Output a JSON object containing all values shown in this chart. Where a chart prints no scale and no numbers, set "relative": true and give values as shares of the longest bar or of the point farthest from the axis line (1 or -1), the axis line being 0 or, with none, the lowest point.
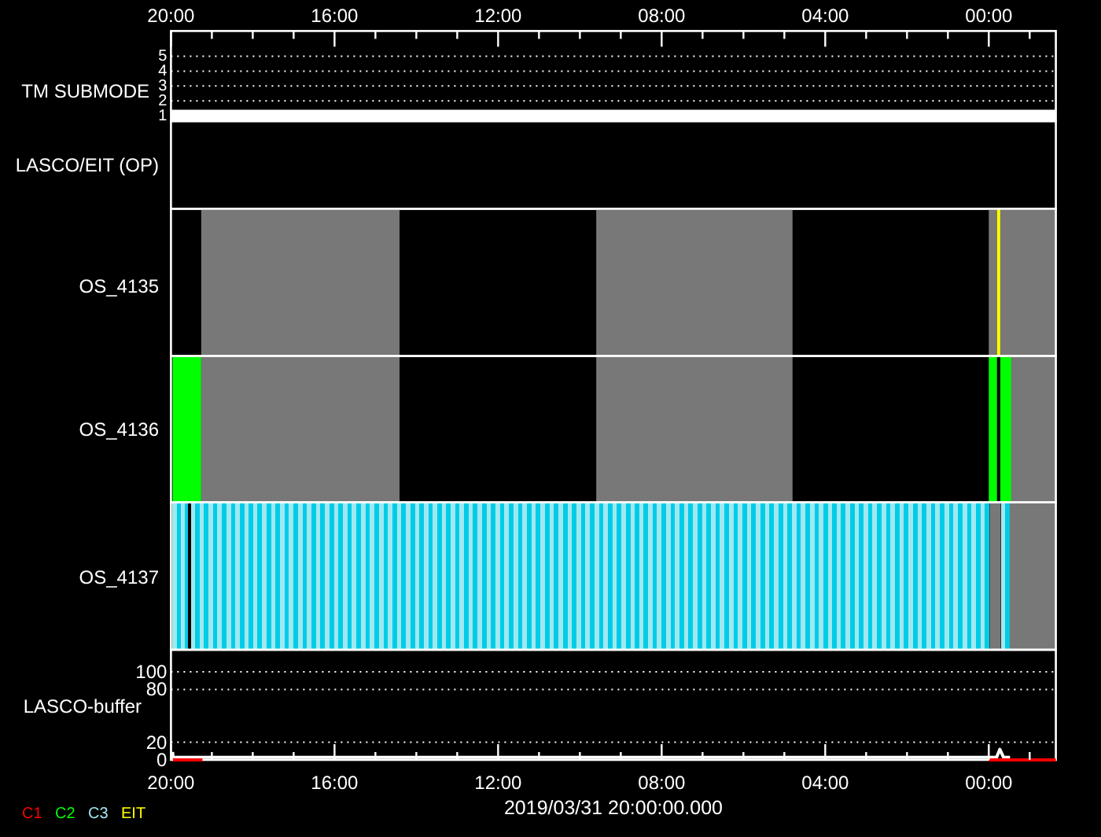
{
  "chart_data": [
    {
      "type": "line",
      "ylabel": "TM SUBMODE",
      "xlim": [
        20,
        -1.64
      ],
      "xticks": [
        {
          "value": 20,
          "label": "20:00"
        },
        {
          "value": 19,
          "label": null
        },
        {
          "value": 18,
          "label": null
        },
        {
          "value": 17,
          "label": null
        },
        {
          "value": 16,
          "label": "16:00"
        },
        {
          "value": 15,
          "label": null
        },
        {
          "value": 14,
          "label": null
        },
        {
          "value": 13,
          "label": null
        },
        {
          "value": 12,
          "label": "12:00"
        },
        {
          "value": 11,
          "label": null
        },
        {
          "value": 10,
          "label": null
        },
        {
          "value": 9,
          "label": null
        },
        {
          "value": 8,
          "label": "08:00"
        },
        {
          "value": 7,
          "label": null
        },
        {
          "value": 6,
          "label": null
        },
        {
          "value": 5,
          "label": null
        },
        {
          "value": 4,
          "label": "04:00"
        },
        {
          "value": 3,
          "label": null
        },
        {
          "value": 2,
          "label": null
        },
        {
          "value": 1,
          "label": null
        },
        {
          "value": 0,
          "label": "00:00"
        },
        {
          "value": -1,
          "label": null
        }
      ],
      "ylim": [
        0.63,
        6.7
      ],
      "yticks": [
        1,
        2,
        3,
        4,
        5
      ],
      "grid": "y",
      "series": [
        {
          "color": "#ffffff",
          "x": [
            20,
            -1.64
          ],
          "values": [
            1,
            1
          ]
        }
      ]
    },
    {
      "type": "other",
      "ylabel": "LASCO/EIT (OP)"
    },
    {
      "type": "area",
      "ylabel": "OS_4135",
      "relative": true,
      "xlim": [
        20,
        -1.64
      ],
      "legend": "bottom left",
      "series": [
        {
          "color": "#787878",
          "x": [
            19.26,
            19.26,
            14.41,
            14.41,
            9.6,
            9.6,
            4.8,
            4.8,
            0,
            0,
            -0.2,
            -0.2,
            -0.28,
            -0.28,
            -1.64
          ],
          "values": [
            0,
            1,
            1,
            0,
            0,
            1,
            1,
            0,
            0,
            1,
            1,
            0,
            0,
            1,
            1
          ]
        },
        {
          "name": "EIT",
          "color": "#ffff00",
          "x": [
            -0.2,
            -0.28
          ],
          "values": [
            1,
            1
          ]
        }
      ]
    },
    {
      "type": "area",
      "ylabel": "OS_4136",
      "relative": true,
      "xlim": [
        20,
        -1.64
      ],
      "legend": "bottom left",
      "series": [
        {
          "name": "C2",
          "color": "#00ff00",
          "x": [
            19.96,
            19.26,
            19.26,
            0,
            0,
            -0.2,
            -0.2,
            -0.28,
            -0.28,
            -0.55
          ],
          "values": [
            1,
            1,
            0,
            0,
            1,
            1,
            0,
            0,
            1,
            1
          ]
        },
        {
          "color": "#787878",
          "x": [
            19.26,
            14.41,
            14.41,
            9.6,
            9.6,
            4.8,
            4.8,
            -0.55,
            -0.55,
            -1.64
          ],
          "values": [
            1,
            1,
            0,
            0,
            1,
            1,
            0,
            0,
            1,
            1
          ]
        }
      ]
    },
    {
      "type": "area",
      "ylabel": "OS_4137",
      "relative": true,
      "xlim": [
        20,
        -1.64
      ],
      "legend": "bottom left",
      "series": [
        {
          "name": "C3",
          "type": "bar",
          "color": "#a0e8f0",
          "x": [
            19.91,
            19.81,
            19.71,
            19.61,
            19.54,
            19.47,
            19.36,
            19.25,
            19.14,
            19.03,
            18.92,
            18.81,
            18.7,
            18.59,
            18.48,
            18.37,
            18.26,
            18.15,
            18.05,
            17.94,
            17.83,
            17.72,
            17.61,
            17.5,
            17.39,
            17.28,
            17.17,
            17.06,
            16.95,
            16.84,
            16.73,
            16.62,
            16.51,
            16.4,
            16.29,
            16.18,
            16.07,
            15.96,
            15.85,
            15.74,
            15.63,
            15.52,
            15.41,
            15.3,
            15.19,
            15.08,
            14.97,
            14.86,
            14.75,
            14.64,
            14.53,
            14.42,
            14.31,
            14.2,
            14.09,
            13.98,
            13.87,
            13.76,
            13.65,
            13.54,
            13.43,
            13.32,
            13.22,
            13.11,
            13.0,
            12.89,
            12.78,
            12.67,
            12.56,
            12.45,
            12.34,
            12.23,
            12.12,
            12.01,
            11.9,
            11.79,
            11.68,
            11.57,
            11.46,
            11.35,
            11.24,
            11.13,
            11.02,
            10.91,
            10.8,
            10.69,
            10.58,
            10.47,
            10.36,
            10.25,
            10.14,
            10.03,
            9.92,
            9.81,
            9.7,
            9.59,
            9.48,
            9.37,
            9.26,
            9.15,
            9.04,
            8.93,
            8.82,
            8.71,
            8.6,
            8.5,
            8.39,
            8.28,
            8.17,
            8.06,
            7.95,
            7.84,
            7.73,
            7.62,
            7.51,
            7.4,
            7.29,
            7.18,
            7.07,
            6.96,
            6.85,
            6.74,
            6.63,
            6.52,
            6.41,
            6.3,
            6.19,
            6.08,
            5.97,
            5.86,
            5.75,
            5.64,
            5.53,
            5.42,
            5.31,
            5.2,
            5.09,
            4.98,
            4.87,
            4.76,
            4.65,
            4.54,
            4.43,
            4.32,
            4.21,
            4.1,
            3.99,
            3.88,
            3.77,
            3.67,
            3.56,
            3.45,
            3.34,
            3.23,
            3.12,
            3.01,
            2.9,
            2.79,
            2.68,
            2.57,
            2.46,
            2.35,
            2.24,
            2.13,
            2.02,
            1.91,
            1.8,
            1.69,
            1.58,
            1.47,
            1.36,
            1.25,
            1.14,
            1.03,
            0.92,
            0.81,
            0.7,
            0.59,
            0.48,
            0.37,
            0.26,
            0.15,
            0.04,
            -0.36,
            -0.45
          ],
          "values": [
            1,
            1,
            1,
            1,
            null,
            1,
            1,
            1,
            1,
            1,
            1,
            1,
            1,
            1,
            1,
            1,
            1,
            1,
            1,
            1,
            1,
            1,
            1,
            1,
            1,
            1,
            1,
            1,
            1,
            1,
            1,
            1,
            1,
            1,
            1,
            1,
            1,
            1,
            1,
            1,
            1,
            1,
            1,
            1,
            1,
            1,
            1,
            1,
            1,
            1,
            1,
            1,
            1,
            1,
            1,
            1,
            1,
            1,
            1,
            1,
            1,
            1,
            1,
            1,
            1,
            1,
            1,
            1,
            1,
            1,
            1,
            1,
            1,
            1,
            1,
            1,
            1,
            1,
            1,
            1,
            1,
            1,
            1,
            1,
            1,
            1,
            1,
            1,
            1,
            1,
            1,
            1,
            1,
            1,
            1,
            1,
            1,
            1,
            1,
            1,
            1,
            1,
            1,
            1,
            1,
            1,
            1,
            1,
            1,
            1,
            1,
            1,
            1,
            1,
            1,
            1,
            1,
            1,
            1,
            1,
            1,
            1,
            1,
            1,
            1,
            1,
            1,
            1,
            1,
            1,
            1,
            1,
            1,
            1,
            1,
            1,
            1,
            1,
            1,
            1,
            1,
            1,
            1,
            1,
            1,
            1,
            1,
            1,
            1,
            1,
            1,
            1,
            1,
            1,
            1,
            1,
            1,
            1,
            1,
            1,
            1,
            1,
            1,
            1,
            1,
            1,
            1,
            1,
            1,
            1,
            1,
            1,
            1,
            1,
            1,
            1,
            1,
            1,
            1,
            1,
            1,
            1,
            1,
            1,
            1
          ],
          "colors": [
            "#a0e8f0",
            "#00cce8",
            "#a0e8f0",
            "#00cce8",
            null,
            "#a0e8f0",
            "#00cce8",
            "#a0e8f0",
            "#00cce8",
            "#a0e8f0",
            "#00cce8",
            "#a0e8f0",
            "#00cce8",
            "#a0e8f0",
            "#00cce8",
            "#a0e8f0",
            "#00cce8",
            "#a0e8f0",
            "#00cce8",
            "#a0e8f0",
            "#00cce8",
            "#a0e8f0",
            "#00cce8",
            "#a0e8f0",
            "#00cce8",
            "#a0e8f0",
            "#00cce8",
            "#a0e8f0",
            "#00cce8",
            "#a0e8f0",
            "#00cce8",
            "#a0e8f0",
            "#00cce8",
            "#a0e8f0",
            "#00cce8",
            "#a0e8f0",
            "#00cce8",
            "#a0e8f0",
            "#00cce8",
            "#a0e8f0",
            "#00cce8",
            "#a0e8f0",
            "#00cce8",
            "#a0e8f0",
            "#00cce8",
            "#a0e8f0",
            "#00cce8",
            "#a0e8f0",
            "#00cce8",
            "#a0e8f0",
            "#00cce8",
            "#a0e8f0",
            "#00cce8",
            "#a0e8f0",
            "#00cce8",
            "#a0e8f0",
            "#00cce8",
            "#a0e8f0",
            "#00cce8",
            "#a0e8f0",
            "#00cce8",
            "#a0e8f0",
            "#00cce8",
            "#a0e8f0",
            "#00cce8",
            "#a0e8f0",
            "#00cce8",
            "#a0e8f0",
            "#00cce8",
            "#a0e8f0",
            "#00cce8",
            "#a0e8f0",
            "#00cce8",
            "#a0e8f0",
            "#00cce8",
            "#a0e8f0",
            "#00cce8",
            "#a0e8f0",
            "#00cce8",
            "#a0e8f0",
            "#00cce8",
            "#a0e8f0",
            "#00cce8",
            "#a0e8f0",
            "#00cce8",
            "#a0e8f0",
            "#00cce8",
            "#a0e8f0",
            "#00cce8",
            "#a0e8f0",
            "#00cce8",
            "#a0e8f0",
            "#00cce8",
            "#a0e8f0",
            "#00cce8",
            "#a0e8f0",
            "#00cce8",
            "#a0e8f0",
            "#00cce8",
            "#a0e8f0",
            "#00cce8",
            "#a0e8f0",
            "#00cce8",
            "#a0e8f0",
            "#00cce8",
            "#a0e8f0",
            "#00cce8",
            "#a0e8f0",
            "#00cce8",
            "#a0e8f0",
            "#00cce8",
            "#a0e8f0",
            "#00cce8",
            "#a0e8f0",
            "#00cce8",
            "#a0e8f0",
            "#00cce8",
            "#a0e8f0",
            "#00cce8",
            "#a0e8f0",
            "#00cce8",
            "#a0e8f0",
            "#00cce8",
            "#a0e8f0",
            "#00cce8",
            "#a0e8f0",
            "#00cce8",
            "#a0e8f0",
            "#00cce8",
            "#a0e8f0",
            "#00cce8",
            "#a0e8f0",
            "#00cce8",
            "#a0e8f0",
            "#00cce8",
            "#a0e8f0",
            "#00cce8",
            "#a0e8f0",
            "#00cce8",
            "#a0e8f0",
            "#00cce8",
            "#a0e8f0",
            "#00cce8",
            "#a0e8f0",
            "#00cce8",
            "#a0e8f0",
            "#00cce8",
            "#a0e8f0",
            "#00cce8",
            "#a0e8f0",
            "#00cce8",
            "#a0e8f0",
            "#00cce8",
            "#a0e8f0",
            "#00cce8",
            "#a0e8f0",
            "#00cce8",
            "#a0e8f0",
            "#00cce8",
            "#a0e8f0",
            "#00cce8",
            "#a0e8f0",
            "#00cce8",
            "#a0e8f0",
            "#00cce8",
            "#a0e8f0",
            "#00cce8",
            "#a0e8f0",
            "#00cce8",
            "#a0e8f0",
            "#00cce8",
            "#a0e8f0",
            "#00cce8",
            "#a0e8f0",
            "#00cce8",
            "#a0e8f0",
            "#00cce8",
            "#a0e8f0",
            "#00cce8",
            "#a0e8f0",
            "#00cce8",
            "#a0e8f0",
            "#00cce8",
            "#a0e8f0",
            "#00cce8"
          ]
        },
        {
          "color": "#787878",
          "x": [
            -0.02,
            -0.29,
            -0.29,
            -0.51,
            -0.51,
            -1.64
          ],
          "values": [
            1,
            1,
            0,
            0,
            1,
            1
          ]
        }
      ]
    },
    {
      "type": "line",
      "ylabel": "LASCO-buffer",
      "xlabel": "2019/03/31 20:00:00.000",
      "xlim": [
        20,
        -1.64
      ],
      "xticks": [
        {
          "value": 20,
          "label": "20:00"
        },
        {
          "value": 19,
          "label": null
        },
        {
          "value": 18,
          "label": null
        },
        {
          "value": 17,
          "label": null
        },
        {
          "value": 16,
          "label": "16:00"
        },
        {
          "value": 15,
          "label": null
        },
        {
          "value": 14,
          "label": null
        },
        {
          "value": 13,
          "label": null
        },
        {
          "value": 12,
          "label": "12:00"
        },
        {
          "value": 11,
          "label": null
        },
        {
          "value": 10,
          "label": null
        },
        {
          "value": 9,
          "label": null
        },
        {
          "value": 8,
          "label": "08:00"
        },
        {
          "value": 7,
          "label": null
        },
        {
          "value": 6,
          "label": null
        },
        {
          "value": 5,
          "label": null
        },
        {
          "value": 4,
          "label": "04:00"
        },
        {
          "value": 3,
          "label": null
        },
        {
          "value": 2,
          "label": null
        },
        {
          "value": 1,
          "label": null
        },
        {
          "value": 0,
          "label": "00:00"
        },
        {
          "value": -1,
          "label": null
        }
      ],
      "ylim": [
        0,
        125
      ],
      "yticks": [
        0,
        20,
        80,
        100
      ],
      "grid": "y",
      "legend": "bottom left",
      "series": [
        {
          "color": "#ffffff",
          "x": [
            19.96,
            19.95,
            19.9,
            -0.19,
            -0.27,
            -0.36,
            -0.52
          ],
          "values": [
            9,
            3,
            3,
            3,
            12,
            3,
            3
          ]
        },
        {
          "name": "C1",
          "color": "#ff0000",
          "x": [
            19.95,
            19.23,
            19.2,
            0,
            -1.64
          ],
          "values": [
            0,
            0,
            null,
            0,
            0
          ]
        }
      ]
    }
  ]
}
